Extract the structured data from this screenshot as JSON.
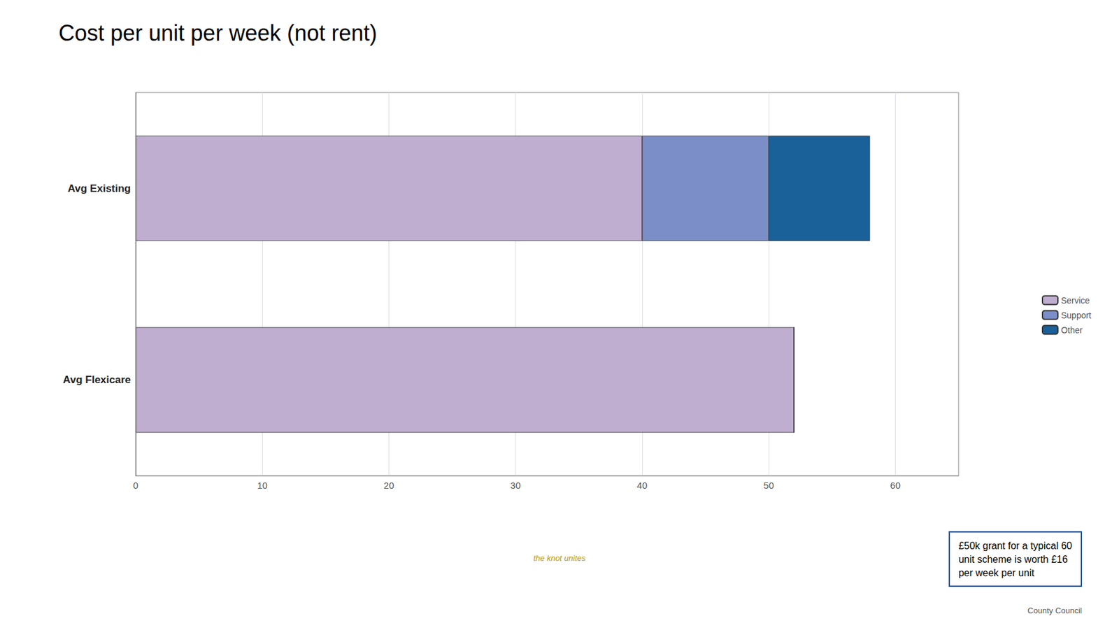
{
  "chart_data": {
    "type": "bar",
    "orientation": "horizontal",
    "stacked": true,
    "title": "Cost per unit per week (not rent)",
    "categories": [
      "Avg Existing",
      "Avg Flexicare"
    ],
    "series": [
      {
        "name": "Service",
        "color": "#c0aed1",
        "values": [
          40,
          52
        ]
      },
      {
        "name": "Support",
        "color": "#7b8ec8",
        "values": [
          10,
          0
        ]
      },
      {
        "name": "Other",
        "color": "#1a6099",
        "values": [
          8,
          0
        ]
      }
    ],
    "xlim": [
      0,
      65
    ],
    "xticks": [
      0,
      10,
      20,
      30,
      40,
      50,
      60
    ],
    "grid": true,
    "legend": "right",
    "annotations": [
      "£50k grant for a typical 60\nunit scheme is worth £16\nper week per unit",
      "the knot unites",
      "County Council"
    ]
  }
}
